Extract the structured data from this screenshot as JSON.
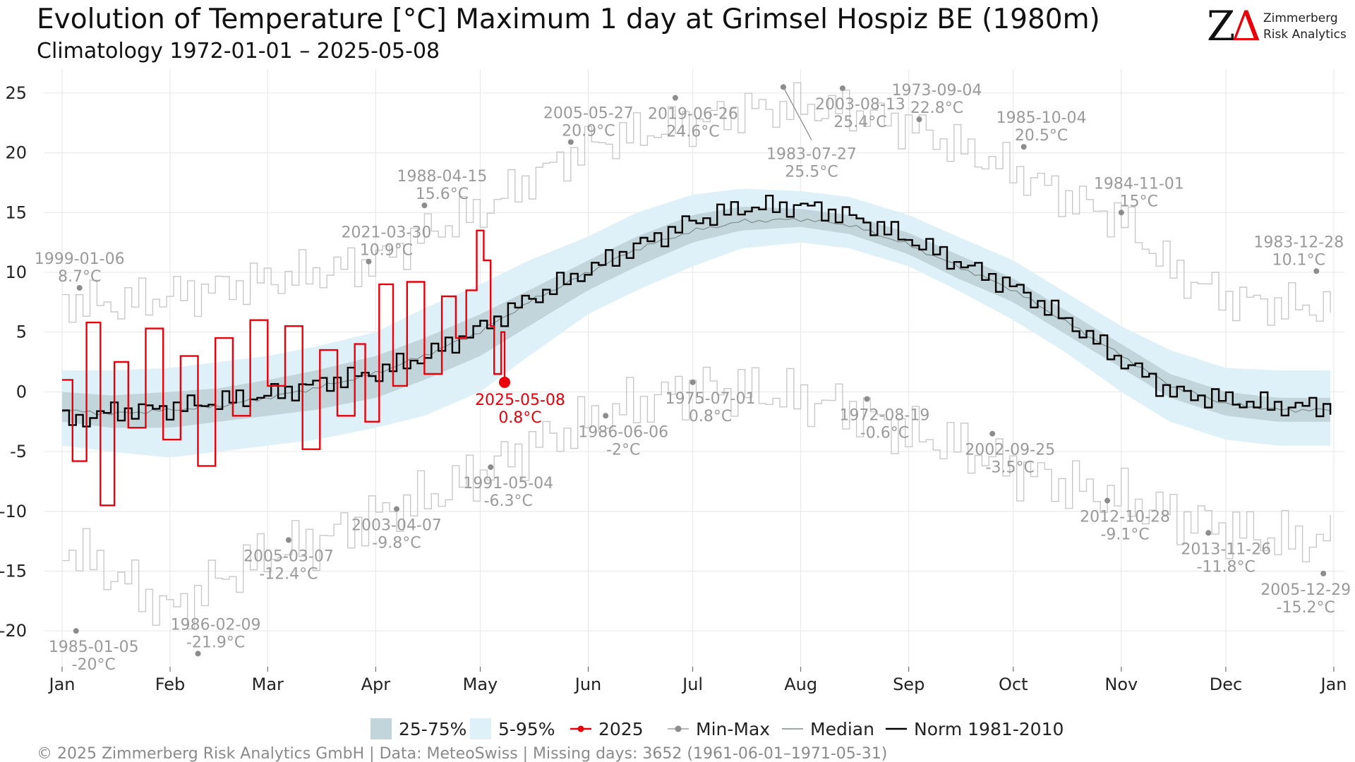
{
  "chart_data": {
    "type": "line",
    "title": "Evolution of Temperature [°C] Maximum 1 day at Grimsel Hospiz  BE (1980m)",
    "subtitle": "Climatology 1972-01-01 – 2025-05-08",
    "ylim": [
      -23,
      27
    ],
    "y_ticks": [
      25,
      20,
      15,
      10,
      5,
      0,
      -5,
      -10,
      -15,
      -20
    ],
    "y_tick_labels": [
      "25",
      "20",
      "15",
      "10",
      "5",
      "0",
      "-5",
      "-10",
      "-15",
      "-20"
    ],
    "month_ticks": [
      {
        "label": "Jan",
        "day": 1
      },
      {
        "label": "Feb",
        "day": 32
      },
      {
        "label": "Mar",
        "day": 60
      },
      {
        "label": "Apr",
        "day": 91
      },
      {
        "label": "May",
        "day": 121
      },
      {
        "label": "Jun",
        "day": 152
      },
      {
        "label": "Jul",
        "day": 182
      },
      {
        "label": "Aug",
        "day": 213
      },
      {
        "label": "Sep",
        "day": 244
      },
      {
        "label": "Oct",
        "day": 274
      },
      {
        "label": "Nov",
        "day": 305
      },
      {
        "label": "Dec",
        "day": 335
      },
      {
        "label": "Jan",
        "day": 366
      }
    ],
    "grid": true,
    "legend_position": "bottom",
    "legend": [
      {
        "label": "25-75%",
        "kind": "band-inner"
      },
      {
        "label": "5-95%",
        "kind": "band-outer"
      },
      {
        "label": "2025",
        "kind": "line-dot-red"
      },
      {
        "label": "Min-Max",
        "kind": "line-dot-grey"
      },
      {
        "label": "Median",
        "kind": "line-grey"
      },
      {
        "label": "Norm 1981-2010",
        "kind": "line-black"
      }
    ],
    "colors": {
      "band_inner": "#c2d5db",
      "band_outer": "#dff1f8",
      "current": "#e8000b",
      "minmax": "#c8c8c8",
      "minmax_dot": "#8c8c8c",
      "median": "#7f8c8d",
      "norm": "#000000"
    },
    "climatology": {
      "day": [
        1,
        15,
        32,
        46,
        60,
        74,
        91,
        105,
        121,
        135,
        152,
        166,
        182,
        196,
        213,
        227,
        244,
        258,
        274,
        288,
        305,
        319,
        335,
        350,
        365
      ],
      "p05": [
        -4.5,
        -5,
        -5.5,
        -5,
        -4.5,
        -4,
        -3,
        -2,
        0,
        3,
        6.5,
        8.5,
        10.5,
        12,
        12.5,
        12,
        10.5,
        8.5,
        6,
        3.5,
        0,
        -2.5,
        -4,
        -4.5,
        -4.5
      ],
      "p25": [
        -2.5,
        -3,
        -3,
        -2.5,
        -2,
        -1.5,
        -0.5,
        1,
        3,
        5.5,
        8.5,
        10.5,
        12.5,
        13.5,
        13.8,
        13.2,
        11.5,
        9.5,
        7.5,
        5,
        2,
        -0.5,
        -2,
        -2.5,
        -2.5
      ],
      "median": [
        -1.5,
        -1.8,
        -1.5,
        -1.2,
        -0.5,
        0.3,
        1.5,
        3,
        5,
        7.5,
        10,
        12,
        13.5,
        14.3,
        14.5,
        14,
        12.3,
        10.5,
        8.5,
        6,
        3,
        0.5,
        -1,
        -1.5,
        -1.5
      ],
      "p75": [
        0,
        -0.3,
        0,
        0.3,
        1,
        1.8,
        3,
        4.5,
        6.5,
        8.5,
        11,
        13,
        14.8,
        15.5,
        15.3,
        14.8,
        13.3,
        11.5,
        9.5,
        7,
        4,
        1.5,
        0,
        -0.5,
        -0.5
      ],
      "p95": [
        1.8,
        1.8,
        2,
        2.5,
        3,
        3.8,
        5,
        7,
        9,
        11,
        13,
        15,
        16.5,
        17,
        16.8,
        16.3,
        14.8,
        13,
        11,
        8.5,
        5.5,
        3.5,
        2,
        1.8,
        1.8
      ],
      "norm": [
        -2.5,
        -1.7,
        -1.5,
        -1,
        -0.5,
        0.5,
        1.5,
        3,
        5.5,
        8,
        10.5,
        12.5,
        14.5,
        15.5,
        15.5,
        14.5,
        12.5,
        10.5,
        8.5,
        6,
        2.5,
        0,
        -0.5,
        -1,
        -1
      ],
      "max": [
        8,
        7.5,
        8,
        8.5,
        9,
        9.5,
        10.5,
        13,
        15,
        18,
        21,
        22,
        23,
        24,
        24,
        23.5,
        22,
        20,
        18,
        16,
        14,
        10,
        8,
        7.5,
        7.5
      ],
      "min": [
        -13,
        -15,
        -18,
        -15,
        -13,
        -12,
        -10,
        -9,
        -7,
        -5,
        -3,
        -1.5,
        0,
        0,
        -0.5,
        -1,
        -3,
        -4,
        -6,
        -7.5,
        -9,
        -10.5,
        -12,
        -13,
        -13
      ]
    },
    "series_2025": {
      "name": "2025",
      "day": [
        1,
        4,
        8,
        12,
        16,
        20,
        25,
        30,
        35,
        40,
        45,
        50,
        55,
        60,
        65,
        70,
        75,
        80,
        85,
        88,
        92,
        96,
        100,
        105,
        110,
        114,
        117,
        120,
        122,
        124,
        125,
        127,
        128
      ],
      "values": [
        1,
        -5.8,
        5.8,
        -9.5,
        2.5,
        -3,
        5.3,
        -4,
        3,
        -6.2,
        4.5,
        -2,
        6,
        0.5,
        5.5,
        -4.8,
        3.5,
        -2,
        4,
        -2.5,
        9,
        0.5,
        9.2,
        1.5,
        8,
        4.5,
        8.5,
        13.5,
        11,
        5.5,
        1.5,
        5,
        0.8
      ]
    },
    "end_point": {
      "day": 128,
      "value": 0.8,
      "label": "2025-05-08",
      "value_label": "0.8°C"
    },
    "annotations": [
      {
        "date": "1999-01-06",
        "value_label": "8.7°C",
        "day": 6,
        "value": 8.7,
        "label_pos": "above"
      },
      {
        "date": "1985-01-05",
        "value_label": "-20°C",
        "day": 5,
        "value": -20,
        "label_pos": "below-right"
      },
      {
        "date": "1986-02-09",
        "value_label": "-21.9°C",
        "day": 40,
        "value": -21.9,
        "label_pos": "above-right"
      },
      {
        "date": "2005-03-07",
        "value_label": "-12.4°C",
        "day": 66,
        "value": -12.4,
        "label_pos": "below"
      },
      {
        "date": "2021-03-30",
        "value_label": "10.9°C",
        "day": 89,
        "value": 10.9,
        "label_pos": "above-right"
      },
      {
        "date": "1988-04-15",
        "value_label": "15.6°C",
        "day": 105,
        "value": 15.6,
        "label_pos": "above-right"
      },
      {
        "date": "2003-04-07",
        "value_label": "-9.8°C",
        "day": 97,
        "value": -9.8,
        "label_pos": "below"
      },
      {
        "date": "1991-05-04",
        "value_label": "-6.3°C",
        "day": 124,
        "value": -6.3,
        "label_pos": "below-right"
      },
      {
        "date": "2005-05-27",
        "value_label": "20.9°C",
        "day": 147,
        "value": 20.9,
        "label_pos": "above-right"
      },
      {
        "date": "1986-06-06",
        "value_label": "-2°C",
        "day": 157,
        "value": -2,
        "label_pos": "below-right"
      },
      {
        "date": "2019-06-26",
        "value_label": "24.6°C",
        "day": 177,
        "value": 24.6,
        "label_pos": "below-right"
      },
      {
        "date": "1975-07-01",
        "value_label": "0.8°C",
        "day": 182,
        "value": 0.8,
        "label_pos": "below-right"
      },
      {
        "date": "1983-07-27",
        "value_label": "25.5°C",
        "day": 208,
        "value": 25.5,
        "label_pos": "leader-below"
      },
      {
        "date": "2003-08-13",
        "value_label": "25.4°C",
        "day": 225,
        "value": 25.4,
        "label_pos": "below-right"
      },
      {
        "date": "1972-08-19",
        "value_label": "-0.6°C",
        "day": 232,
        "value": -0.6,
        "label_pos": "below-right"
      },
      {
        "date": "1973-09-04",
        "value_label": "22.8°C",
        "day": 247,
        "value": 22.8,
        "label_pos": "above-right"
      },
      {
        "date": "2002-09-25",
        "value_label": "-3.5°C",
        "day": 268,
        "value": -3.5,
        "label_pos": "below-right"
      },
      {
        "date": "1985-10-04",
        "value_label": "20.5°C",
        "day": 277,
        "value": 20.5,
        "label_pos": "above-right"
      },
      {
        "date": "2012-10-28",
        "value_label": "-9.1°C",
        "day": 301,
        "value": -9.1,
        "label_pos": "below-right"
      },
      {
        "date": "1984-11-01",
        "value_label": "15°C",
        "day": 305,
        "value": 15,
        "label_pos": "above-right"
      },
      {
        "date": "2013-11-26",
        "value_label": "-11.8°C",
        "day": 330,
        "value": -11.8,
        "label_pos": "below-right"
      },
      {
        "date": "1983-12-28",
        "value_label": "10.1°C",
        "day": 361,
        "value": 10.1,
        "label_pos": "above-left"
      },
      {
        "date": "2005-12-29",
        "value_label": "-15.2°C",
        "day": 363,
        "value": -15.2,
        "label_pos": "below-left"
      }
    ]
  },
  "logo": {
    "mark_z": "Z",
    "mark_delta": "Δ",
    "line1": "Zimmerberg",
    "line2": "Risk Analytics",
    "color_z": "#111111",
    "color_delta": "#e8000b"
  },
  "footer": "©  2025 Zimmerberg Risk Analytics GmbH | Data: MeteoSwiss | Missing days: 3652 (1961-06-01–1971-05-31)"
}
